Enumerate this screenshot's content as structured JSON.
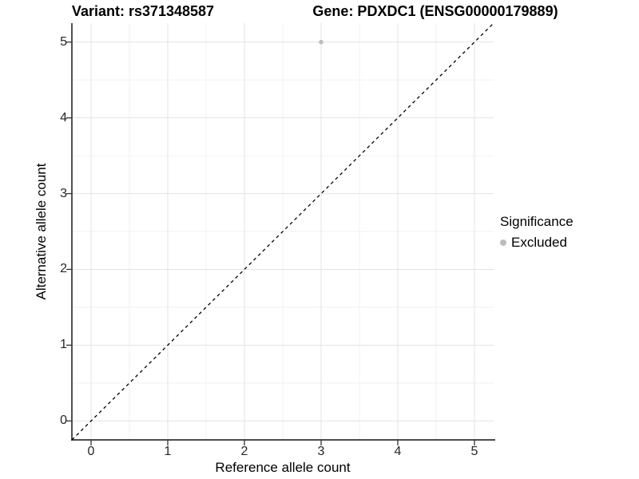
{
  "chart_data": {
    "type": "scatter",
    "title_variant": "Variant: rs371348587",
    "title_gene": "Gene: PDXDC1 (ENSG00000179889)",
    "xlabel": "Reference allele count",
    "ylabel": "Alternative allele count",
    "xlim": [
      -0.25,
      5.25
    ],
    "ylim": [
      -0.25,
      5.25
    ],
    "xticks": [
      0,
      1,
      2,
      3,
      4,
      5
    ],
    "yticks": [
      0,
      1,
      2,
      3,
      4,
      5
    ],
    "grid": true,
    "minor_gridlines": true,
    "points": [
      {
        "x": 3,
        "y": 5,
        "series": "Excluded"
      }
    ],
    "identity_line": {
      "style": "dashed",
      "x1": -0.25,
      "y1": -0.25,
      "x2": 5.25,
      "y2": 5.25
    },
    "legend": {
      "title": "Significance",
      "position": "right",
      "entries": [
        {
          "label": "Excluded",
          "color": "#bdbdbd"
        }
      ]
    },
    "colors": {
      "point": "#bdbdbd",
      "grid_major": "#e3e3e3",
      "grid_minor": "#f0f0f0",
      "axis_line": "#333333",
      "tick_mark": "#333333",
      "identity_line": "#000000",
      "background": "#ffffff"
    }
  }
}
